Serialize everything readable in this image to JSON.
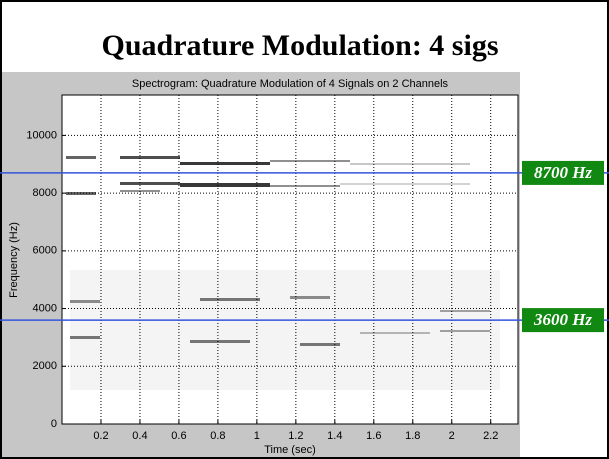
{
  "slide_title": "Quadrature Modulation: 4 sigs",
  "chart_data": {
    "type": "spectrogram",
    "title": "Spectrogram: Quadrature Modulation of 4 Signals on 2 Channels",
    "x_label": "Time (sec)",
    "y_label": "Frequency (Hz)",
    "xlim": [
      0,
      2.34
    ],
    "ylim": [
      0,
      11400
    ],
    "xticks": [
      0.2,
      0.4,
      0.6,
      0.8,
      1,
      1.2,
      1.4,
      1.6,
      1.8,
      2,
      2.2
    ],
    "yticks": [
      0,
      2000,
      4000,
      6000,
      8000,
      10000
    ],
    "grid": true,
    "annotations": [
      {
        "value": 8700,
        "label": "8700 Hz"
      },
      {
        "value": 3600,
        "label": "3600 Hz"
      }
    ],
    "annotation_color": "#3355dd",
    "label_background": "#118811"
  }
}
